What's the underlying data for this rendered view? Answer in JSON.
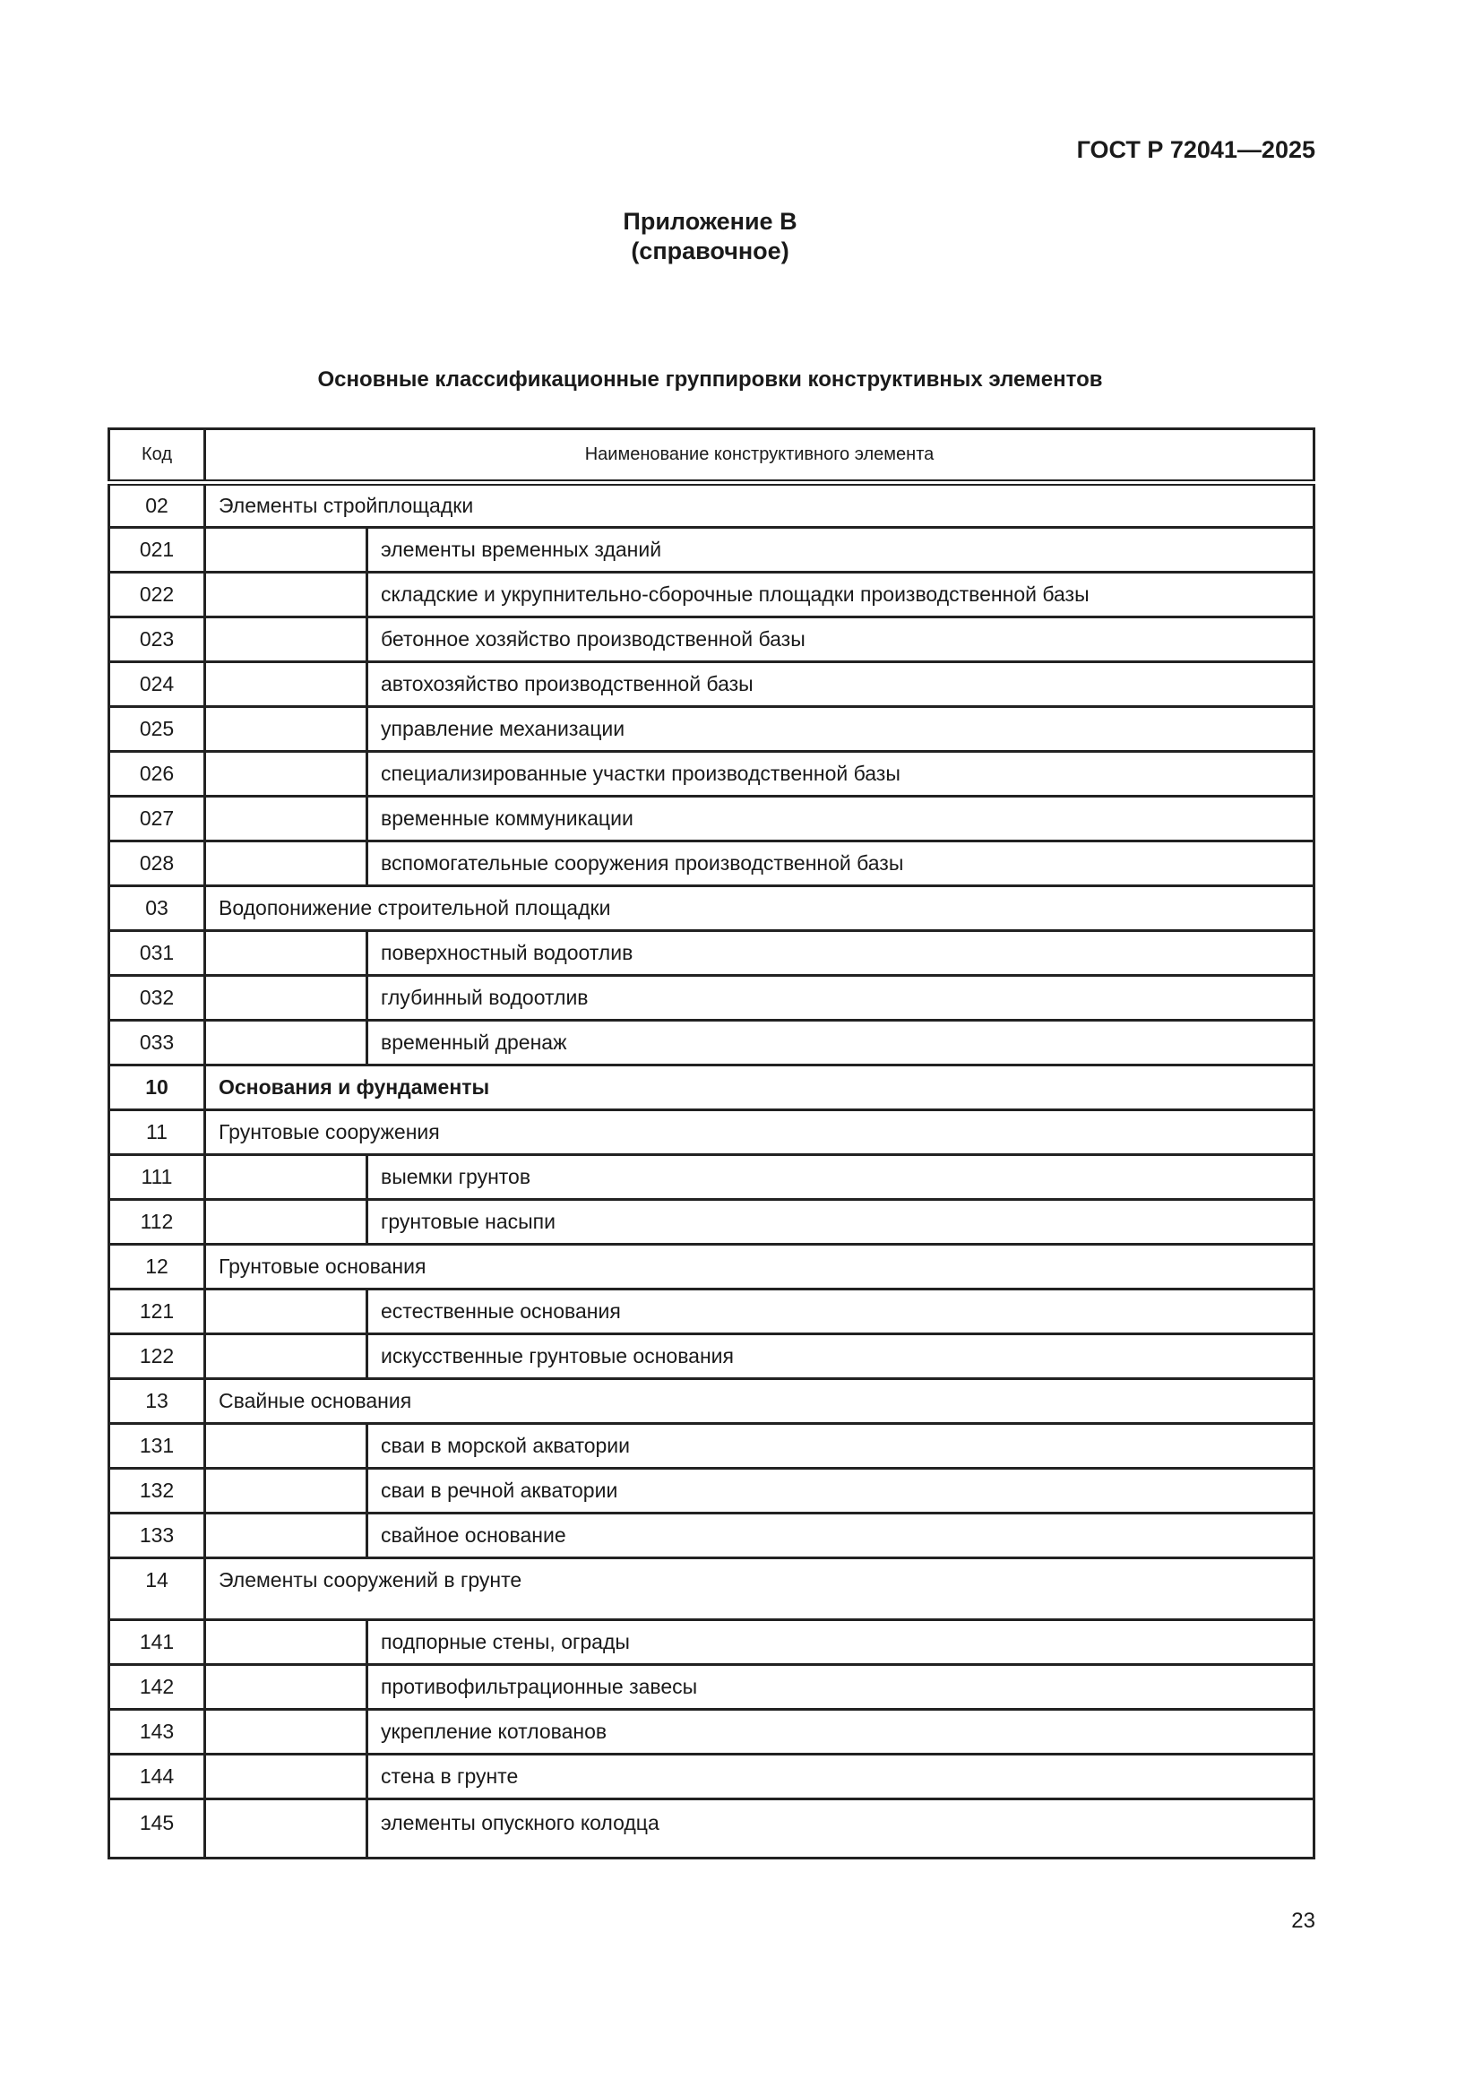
{
  "header": {
    "doc_code": "ГОСТ Р 72041—2025"
  },
  "appendix": {
    "title": "Приложение В",
    "subtitle": "(справочное)"
  },
  "table_title": "Основные классификационные группировки конструктивных элементов",
  "table": {
    "columns": [
      "Код",
      "Наименование конструктивного элемента"
    ],
    "rows": [
      {
        "code": "02",
        "name": "Элементы стройплощадки",
        "level": 1
      },
      {
        "code": "021",
        "name": "элементы временных зданий",
        "level": 2
      },
      {
        "code": "022",
        "name": "складские и укрупнительно-сборочные площадки производственной базы",
        "level": 2
      },
      {
        "code": "023",
        "name": "бетонное хозяйство производственной базы",
        "level": 2
      },
      {
        "code": "024",
        "name": "автохозяйство производственной базы",
        "level": 2
      },
      {
        "code": "025",
        "name": "управление механизации",
        "level": 2
      },
      {
        "code": "026",
        "name": "специализированные участки производственной базы",
        "level": 2
      },
      {
        "code": "027",
        "name": "временные коммуникации",
        "level": 2
      },
      {
        "code": "028",
        "name": "вспомогательные сооружения производственной базы",
        "level": 2
      },
      {
        "code": "03",
        "name": "Водопонижение строительной площадки",
        "level": 1
      },
      {
        "code": "031",
        "name": "поверхностный водоотлив",
        "level": 2
      },
      {
        "code": "032",
        "name": "глубинный водоотлив",
        "level": 2
      },
      {
        "code": "033",
        "name": "временный дренаж",
        "level": 2
      },
      {
        "code": "10",
        "name": "Основания и фундаменты",
        "level": 0
      },
      {
        "code": "11",
        "name": "Грунтовые сооружения",
        "level": 1
      },
      {
        "code": "111",
        "name": "выемки грунтов",
        "level": 2
      },
      {
        "code": "112",
        "name": "грунтовые насыпи",
        "level": 2
      },
      {
        "code": "12",
        "name": "Грунтовые основания",
        "level": 1
      },
      {
        "code": "121",
        "name": "естественные основания",
        "level": 2
      },
      {
        "code": "122",
        "name": "искусственные грунтовые основания",
        "level": 2
      },
      {
        "code": "13",
        "name": "Свайные основания",
        "level": 1
      },
      {
        "code": "131",
        "name": "сваи в морской акватории",
        "level": 2
      },
      {
        "code": "132",
        "name": "сваи в речной акватории",
        "level": 2
      },
      {
        "code": "133",
        "name": "свайное основание",
        "level": 2
      },
      {
        "code": "14",
        "name": "Элементы сооружений в грунте",
        "level": 1
      },
      {
        "code": "141",
        "name": "подпорные стены, ограды",
        "level": 2
      },
      {
        "code": "142",
        "name": "противофильтрационные завесы",
        "level": 2
      },
      {
        "code": "143",
        "name": "укрепление котлованов",
        "level": 2
      },
      {
        "code": "144",
        "name": "стена в грунте",
        "level": 2
      },
      {
        "code": "145",
        "name": "элементы опускного колодца",
        "level": 2
      }
    ]
  },
  "page_number": "23"
}
